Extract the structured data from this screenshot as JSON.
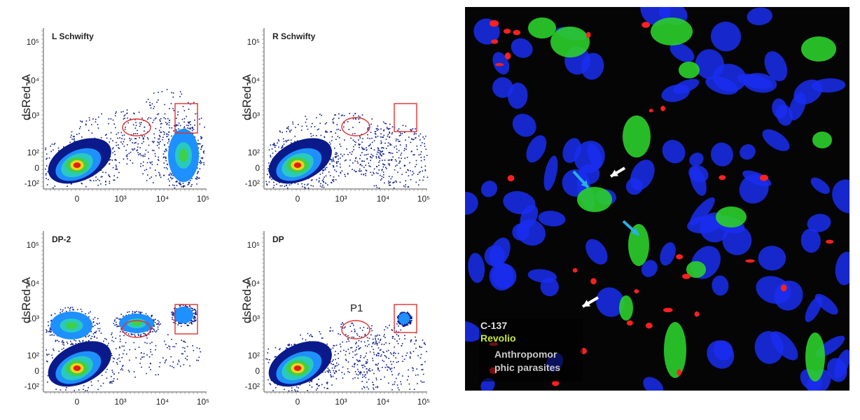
{
  "panels": [
    {
      "title": "L Schwifty",
      "ylabel": "dsRed-A",
      "gate_label": ""
    },
    {
      "title": "R Schwifty",
      "ylabel": "dsRed-A",
      "gate_label": ""
    },
    {
      "title": "DP-2",
      "ylabel": "dsRed-A",
      "gate_label": ""
    },
    {
      "title": "DP",
      "ylabel": "dsRed-A",
      "gate_label": "P1"
    }
  ],
  "y_ticks": [
    "10⁵",
    "10⁴",
    "10³",
    "10²",
    "0",
    "-10²"
  ],
  "x_ticks": [
    "0",
    "10³",
    "10⁴",
    "10⁵"
  ],
  "legend": {
    "line1": "C-137",
    "line2": "Revolio",
    "line3": "Anthropomor",
    "line4": "phic parasites"
  },
  "colors": {
    "dense_core": "#e02010",
    "mid": "#3fd04a",
    "outer": "#1e90ff",
    "sparse": "#0a1a8a",
    "gate": "#e03030",
    "legend_c137": "#e0e0e0",
    "legend_revolio": "#c8e83a",
    "legend_parasites": "#c8c8c8",
    "arrow_cyan": "#2ab0e0",
    "arrow_white": "#ffffff"
  }
}
